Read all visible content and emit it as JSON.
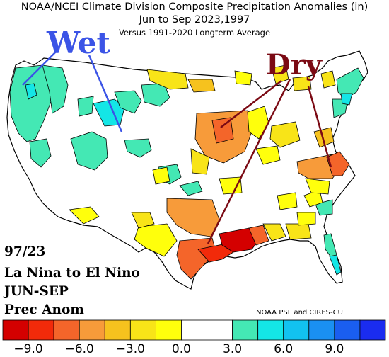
{
  "header": {
    "title_line1": "NOAA/NCEI Climate Division Composite Precipitation Anomalies (in)",
    "title_line2": "Jun to Sep  2023,1997",
    "title_line3": "Versus 1991-2020 Longterm Average"
  },
  "labels": {
    "wet": "Wet",
    "dry": "Dry"
  },
  "annotation": {
    "line1": "97/23",
    "line2": "La Nina to El Nino",
    "line3": "JUN-SEP",
    "line4": "Prec Anom"
  },
  "credit": "NOAA PSL and CIRES-CU",
  "colorbar": {
    "colors": [
      "#d40000",
      "#f22a0a",
      "#f4652a",
      "#f79b3a",
      "#f6c21e",
      "#f8e418",
      "#ffff0c",
      "#ffffff",
      "#ffffff",
      "#44e8b4",
      "#14e6e6",
      "#12c2f0",
      "#1a90f2",
      "#1a5ef0",
      "#1a2cf0"
    ],
    "tick_labels": [
      "-9.0",
      "-6.0",
      "-3.0",
      "0.0",
      "3.0",
      "6.0",
      "9.0"
    ]
  },
  "colors": {
    "wet_label": "#3b54e6",
    "dry_label": "#7b0a14",
    "border": "#000000"
  }
}
